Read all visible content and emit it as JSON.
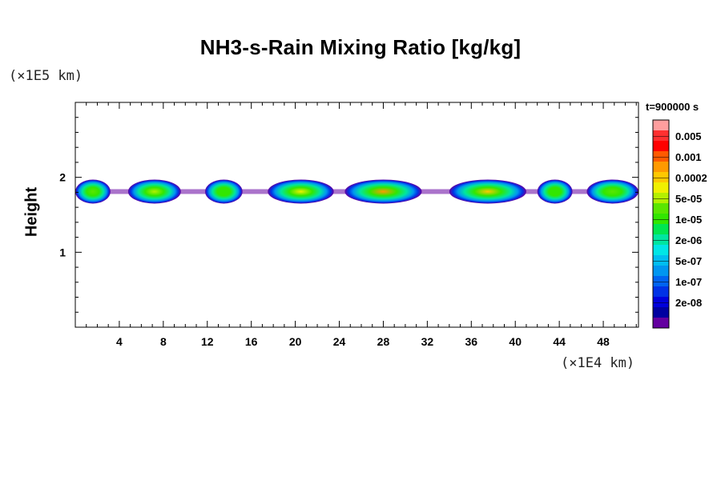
{
  "chart_data": {
    "type": "heatmap",
    "title": "NH3-s-Rain Mixing Ratio [kg/kg]",
    "ylabel": "Height",
    "y_unit": "(×1E5 km)",
    "x_unit": "(×1E4 km)",
    "xlim": [
      0,
      51.2
    ],
    "ylim": [
      0,
      3.0
    ],
    "x_ticks": [
      "4",
      "8",
      "12",
      "16",
      "20",
      "24",
      "28",
      "32",
      "36",
      "40",
      "44",
      "48"
    ],
    "y_ticks": [
      "1",
      "2"
    ],
    "time_label": "t=900000 s",
    "colorbar": {
      "labels": [
        "0.005",
        "0.001",
        "0.0002",
        "5e-05",
        "1e-05",
        "2e-06",
        "5e-07",
        "1e-07",
        "2e-08"
      ],
      "colors": [
        "#ff9e9e",
        "#ff3030",
        "#ff0000",
        "#ff5a00",
        "#ff9a00",
        "#ffc800",
        "#f0f000",
        "#b4f000",
        "#5ae600",
        "#32e600",
        "#00e650",
        "#00e6a0",
        "#00e6e6",
        "#00bef0",
        "#0096f0",
        "#0064f0",
        "#0032e6",
        "#0000dc",
        "#0000a0",
        "#6400a0"
      ]
    },
    "cloud_band_y_range": [
      1.65,
      1.97
    ],
    "cloud_cells": [
      {
        "x": [
          0.0,
          3.2
        ],
        "core": "#5ae600"
      },
      {
        "x": [
          4.8,
          9.6
        ],
        "core": "#b4f000"
      },
      {
        "x": [
          11.8,
          15.2
        ],
        "core": "#32e600"
      },
      {
        "x": [
          17.5,
          23.5
        ],
        "core": "#f0f000"
      },
      {
        "x": [
          24.5,
          31.5
        ],
        "core": "#ff9a00"
      },
      {
        "x": [
          34.0,
          41.0
        ],
        "core": "#ffc800"
      },
      {
        "x": [
          42.0,
          45.2
        ],
        "core": "#32e600"
      },
      {
        "x": [
          46.5,
          51.2
        ],
        "core": "#5ae600"
      }
    ]
  }
}
